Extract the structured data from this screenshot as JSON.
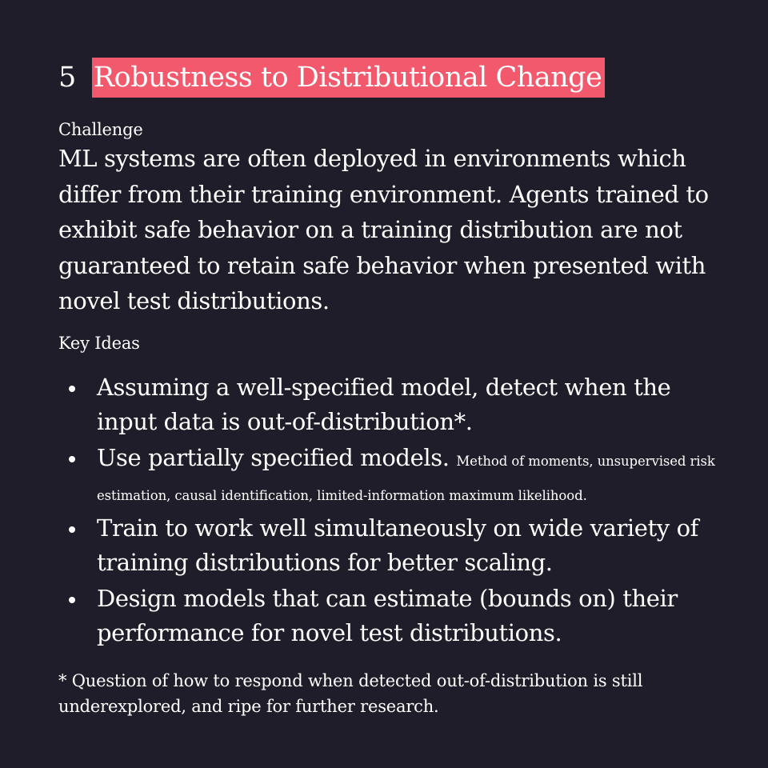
{
  "accent_color": "#f2596d",
  "heading": {
    "number": "5",
    "title": "Robustness to Distributional Change"
  },
  "challenge": {
    "label": "Challenge",
    "text": "ML systems are often deployed in environments which differ from their training environment. Agents trained to exhibit safe behavior on a training distribution are not guaranteed to retain safe behavior when presented with novel test distributions."
  },
  "key_ideas": {
    "label": "Key Ideas",
    "items": [
      {
        "text": "Assuming a well-specified model, detect when the input data is out-of-distribution*.",
        "detail": ""
      },
      {
        "text": "Use partially specified models.",
        "detail": "Method of moments, unsupervised risk estimation, causal identification, limited-information maximum likelihood."
      },
      {
        "text": "Train to work well simultaneously on wide variety of training distributions for better scaling.",
        "detail": ""
      },
      {
        "text": "Design models that can estimate (bounds on) their performance for novel test distributions.",
        "detail": ""
      }
    ]
  },
  "footnote": "* Question of how to respond when detected out-of-distribution is still underexplored, and ripe for further research."
}
